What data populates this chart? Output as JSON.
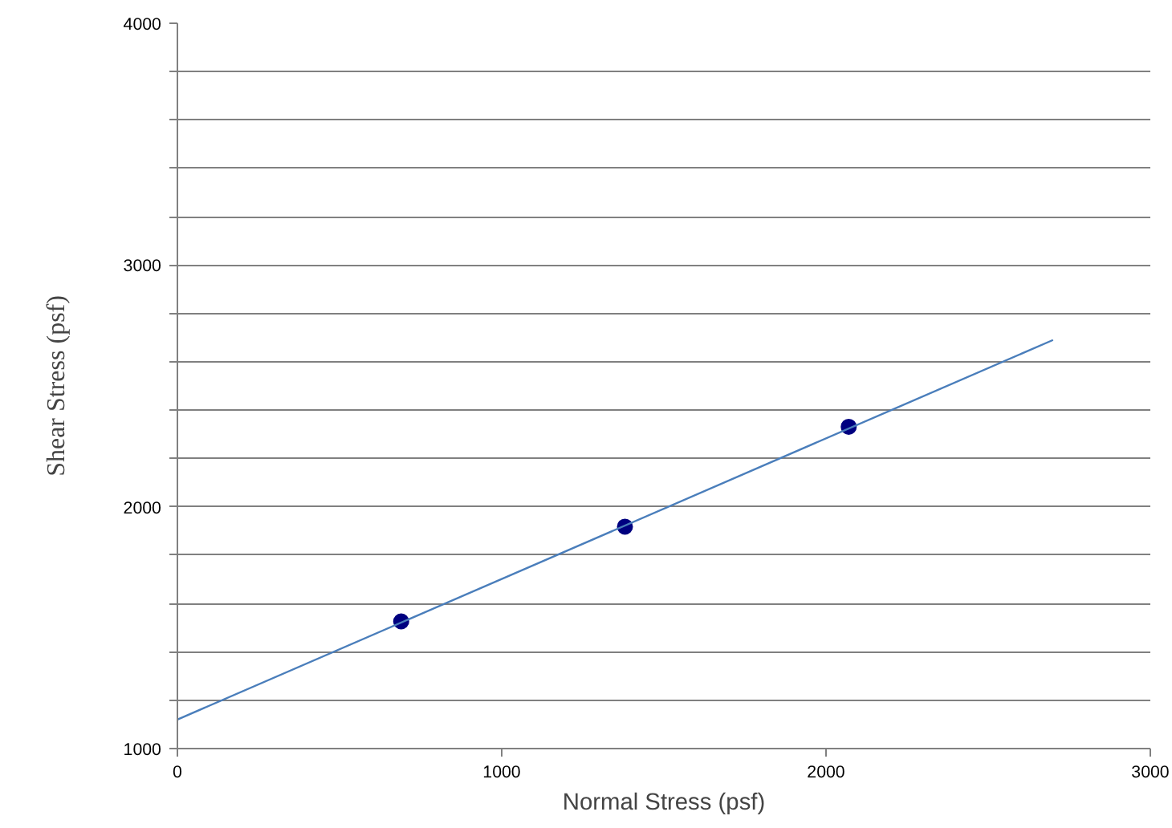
{
  "chart_data": {
    "type": "scatter",
    "xlabel": "Normal Stress (psf)",
    "ylabel": "Shear Stress (psf)",
    "xlim": [
      0,
      3000
    ],
    "xticks": [
      0,
      1000,
      2000,
      3000
    ],
    "ylim": [
      1000,
      4000
    ],
    "yticks": [
      1000,
      {
        "value": 1200,
        "label": null
      },
      {
        "value": 1400,
        "label": null
      },
      {
        "value": 1600,
        "label": null
      },
      {
        "value": 1800,
        "label": null
      },
      2000,
      {
        "value": 2200,
        "label": null
      },
      {
        "value": 2400,
        "label": null
      },
      {
        "value": 2600,
        "label": null
      },
      {
        "value": 2800,
        "label": null
      },
      3000,
      {
        "value": 3200,
        "label": null
      },
      {
        "value": 3400,
        "label": null
      },
      {
        "value": 3600,
        "label": null
      },
      {
        "value": 3800,
        "label": null
      },
      4000
    ],
    "grid": "y",
    "marker": "circle",
    "series": [
      {
        "color": "#000080",
        "x": [
          690,
          1380,
          2070
        ],
        "values": [
          1526,
          1918,
          2331
        ]
      },
      {
        "type": "line",
        "color": "#4a7ebb",
        "x": [
          0,
          2700
        ],
        "values": [
          1120,
          2690
        ],
        "marker": "none",
        "line_style": "solid"
      }
    ]
  }
}
